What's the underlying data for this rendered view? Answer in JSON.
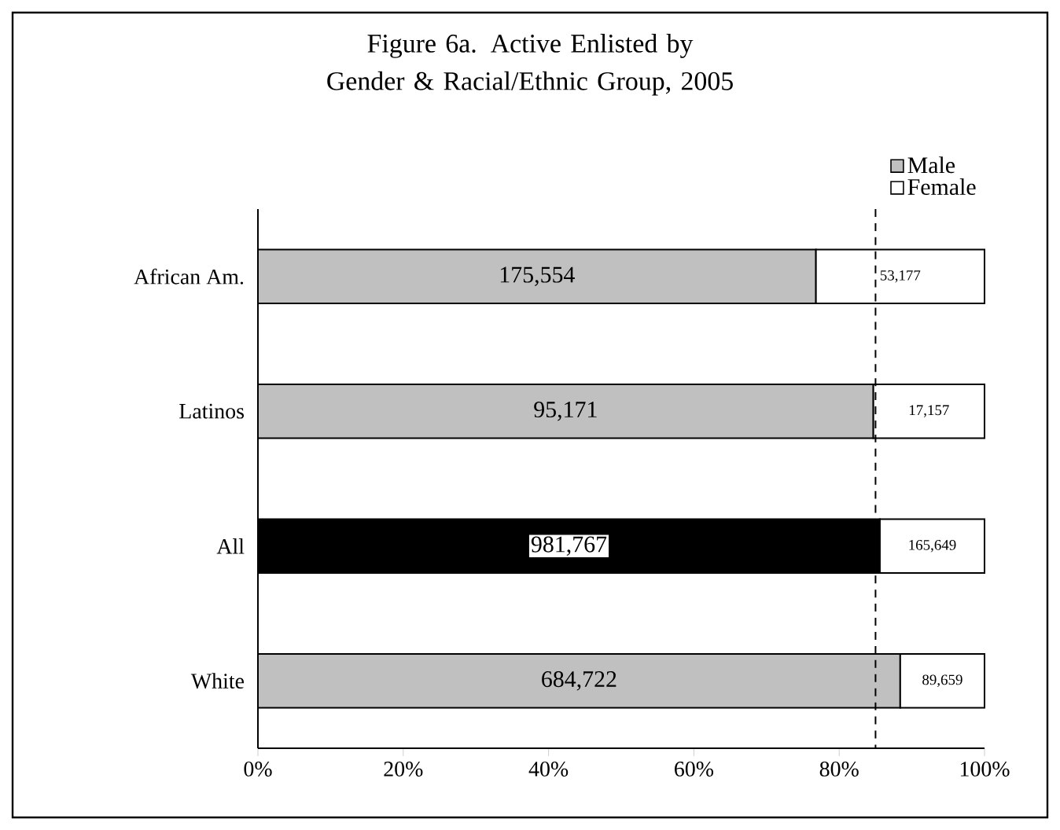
{
  "chart_data": {
    "type": "bar",
    "orientation": "horizontal",
    "stacked": true,
    "title": "Figure 6a. Active Enlisted by Gender & Racial/Ethnic Group, 2005",
    "categories": [
      "African Am.",
      "Latinos",
      "All",
      "White"
    ],
    "series": [
      {
        "name": "Male",
        "color": "#c0c0c0",
        "colors": [
          "#c0c0c0",
          "#c0c0c0",
          "#000000",
          "#c0c0c0"
        ],
        "values": [
          76.8,
          84.7,
          85.6,
          88.4
        ]
      },
      {
        "name": "Female",
        "color": "#ffffff",
        "values": [
          23.2,
          15.3,
          14.4,
          11.6
        ]
      }
    ],
    "annotations": [
      "175,554",
      "95,171",
      "981,767",
      "684,722",
      "53,177",
      "17,157",
      "165,649",
      "89,659"
    ],
    "xlim": [
      0,
      100
    ],
    "xticks": [
      {
        "value": 0,
        "label": "0%"
      },
      {
        "value": 20,
        "label": "20%"
      },
      {
        "value": 40,
        "label": "40%"
      },
      {
        "value": 60,
        "label": "60%"
      },
      {
        "value": 80,
        "label": "80%"
      },
      {
        "value": 100,
        "label": "100%"
      }
    ],
    "ref_lines": [
      {
        "axis": "x",
        "value": 85,
        "line_style": "dashed"
      }
    ],
    "legend": "top right",
    "grid": false
  }
}
